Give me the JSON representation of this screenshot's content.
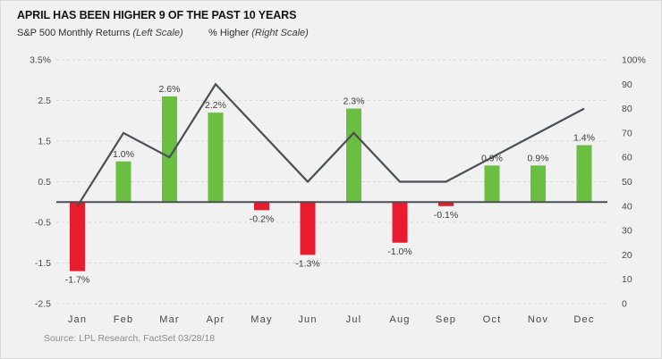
{
  "header": {
    "title": "APRIL HAS BEEN HIGHER 9 OF THE PAST 10 YEARS",
    "legend_left": {
      "text": "S&P 500 Monthly Returns",
      "qualifier": "(Left Scale)"
    },
    "legend_right": {
      "text": "% Higher",
      "qualifier": "(Right Scale)"
    }
  },
  "source": "Source: LPL Research, FactSet 03/28/18",
  "chart_data": {
    "type": "bar+line",
    "categories": [
      "Jan",
      "Feb",
      "Mar",
      "Apr",
      "May",
      "Jun",
      "Jul",
      "Aug",
      "Sep",
      "Oct",
      "Nov",
      "Dec"
    ],
    "series": [
      {
        "name": "S&P 500 Monthly Returns",
        "type": "bar",
        "axis": "left",
        "values": [
          -1.7,
          1.0,
          2.6,
          2.2,
          -0.2,
          -1.3,
          2.3,
          -1.0,
          -0.1,
          0.9,
          0.9,
          1.4
        ],
        "labels": [
          "-1.7%",
          "1.0%",
          "2.6%",
          "2.2%",
          "-0.2%",
          "-1.3%",
          "2.3%",
          "-1.0%",
          "-0.1%",
          "0.9%",
          "0.9%",
          "1.4%"
        ]
      },
      {
        "name": "% Higher",
        "type": "line",
        "axis": "right",
        "values": [
          40,
          70,
          60,
          90,
          70,
          50,
          70,
          50,
          50,
          60,
          70,
          80
        ]
      }
    ],
    "left_axis": {
      "ticks": [
        "3.5%",
        "2.5",
        "1.5",
        "0.5",
        "-0.5",
        "-1.5",
        "-2.5"
      ],
      "values": [
        3.5,
        2.5,
        1.5,
        0.5,
        -0.5,
        -1.5,
        -2.5
      ],
      "range": [
        -2.5,
        3.5
      ]
    },
    "right_axis": {
      "ticks": [
        "100%",
        "90",
        "80",
        "70",
        "60",
        "50",
        "40",
        "30",
        "20",
        "10",
        "0"
      ],
      "values": [
        100,
        90,
        80,
        70,
        60,
        50,
        40,
        30,
        20,
        10,
        0
      ],
      "range": [
        0,
        100
      ]
    },
    "grid": "dashed-horizontal",
    "legend_position": "top",
    "colors": {
      "positive_bar": "#6abf43",
      "negative_bar": "#e81b2f",
      "line": "#4a4e54",
      "zero_line": "#4a4e54",
      "grid": "#d8d8d8",
      "background": "#f1f1f2"
    }
  }
}
